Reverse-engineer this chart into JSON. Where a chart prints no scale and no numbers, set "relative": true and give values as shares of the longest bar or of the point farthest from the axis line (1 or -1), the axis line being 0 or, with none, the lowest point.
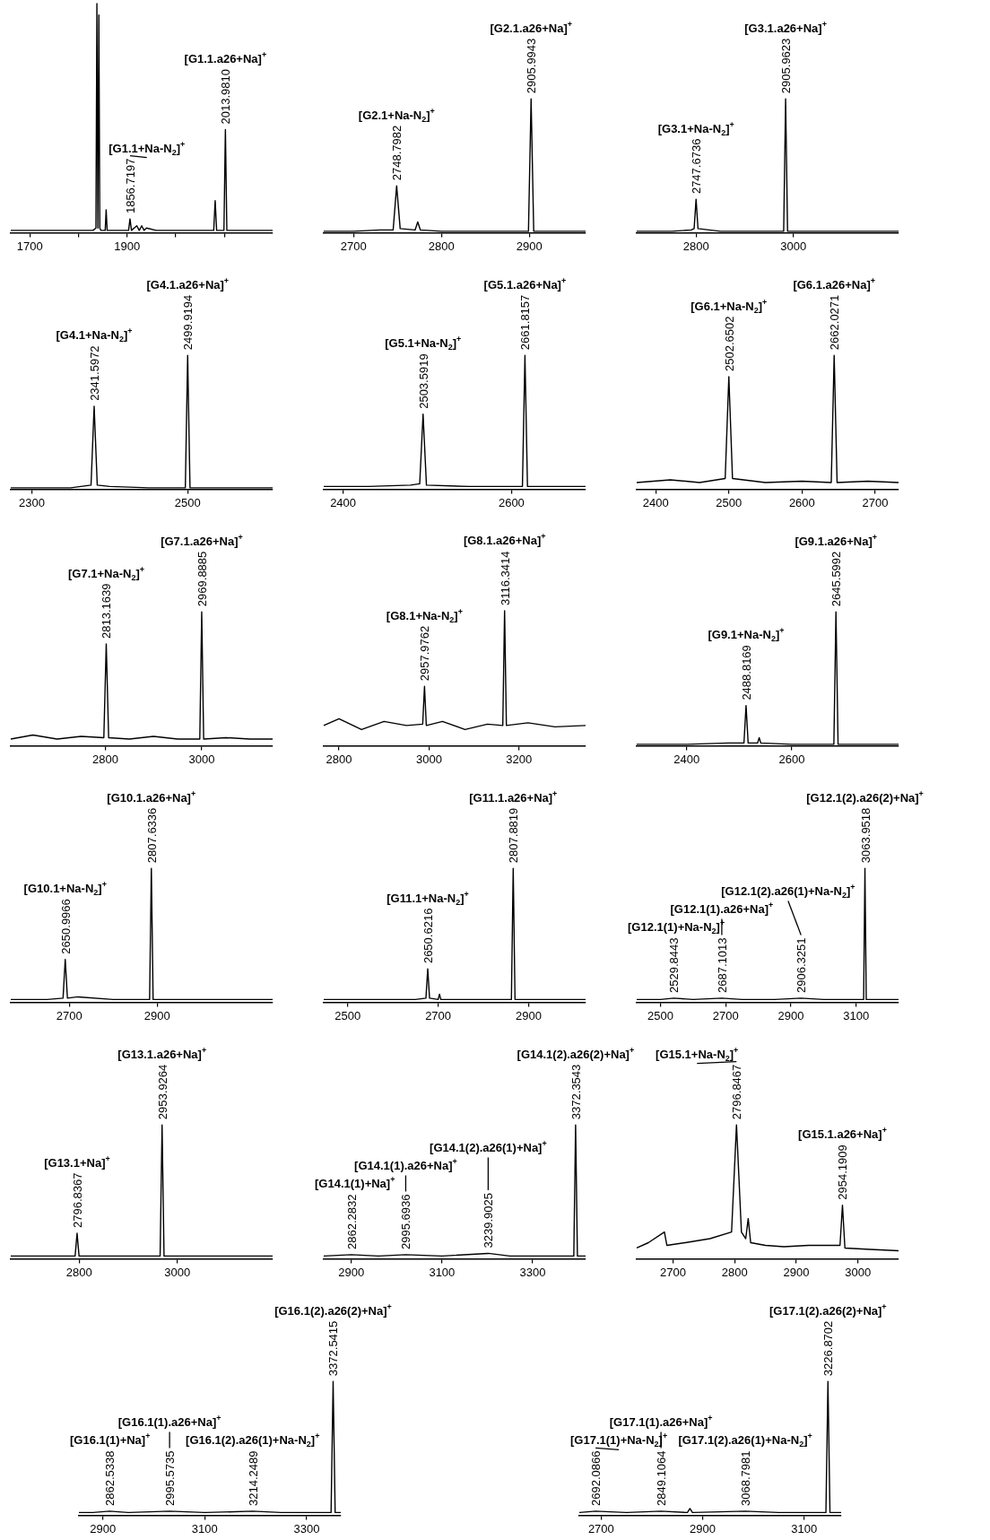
{
  "chart_data": [
    {
      "type": "line",
      "relative": true,
      "color": "#000000",
      "xlim": [
        1661,
        2199
      ],
      "xticks": [
        1700,
        {
          "value": 1800,
          "label": null
        },
        1900,
        {
          "value": 2000,
          "label": null
        },
        {
          "value": 2100,
          "label": null
        }
      ],
      "x": [
        1661,
        1700,
        1760,
        1800,
        1830,
        1836,
        1838,
        1840,
        1842,
        1844,
        1846,
        1850,
        1855,
        1857,
        1859,
        1880,
        1903,
        1906,
        1909,
        1920,
        1925,
        1930,
        1935,
        1940,
        1960,
        2060,
        2078,
        2081,
        2084,
        2099,
        2102,
        2105,
        2150,
        2199
      ],
      "values": [
        0.01,
        0.01,
        0.01,
        0.01,
        0.01,
        0.02,
        1,
        0.02,
        0.95,
        0.02,
        0.01,
        0.01,
        0.01,
        0.1,
        0.01,
        0.01,
        0.01,
        0.06,
        0.01,
        0.03,
        0.01,
        0.03,
        0.01,
        0.02,
        0.01,
        0.01,
        0.01,
        0.14,
        0.01,
        0.01,
        0.45,
        0.01,
        0.01,
        0.01
      ],
      "annotations": [
        "[G1.1+Na-N$_{2}$]$^{+}$",
        {
          "text": "1856.7197",
          "x": 1906,
          "y": 0.06
        },
        "[G1.1.a26+Na]$^{+}$",
        {
          "text": "2013.9810",
          "x": 2102,
          "y": 0.45
        }
      ]
    },
    {
      "type": "line",
      "relative": true,
      "color": "#000000",
      "xlim": [
        2666,
        2964
      ],
      "xticks": [
        2700,
        2800,
        2900
      ],
      "x": [
        2666,
        2700,
        2730,
        2745,
        2749,
        2753,
        2770,
        2773,
        2776,
        2800,
        2850,
        2899,
        2902,
        2905,
        2930,
        2964
      ],
      "values": [
        0.01,
        0.01,
        0.02,
        0.02,
        0.35,
        0.03,
        0.02,
        0.08,
        0.02,
        0.01,
        0.01,
        0.01,
        1,
        0.01,
        0.01,
        0.01
      ],
      "annotations": [
        "[G2.1+Na-N$_{2}$]$^{+}$",
        {
          "text": "2748.7982",
          "x": 2749,
          "y": 0.35
        },
        "[G2.1.a26+Na]$^{+}$",
        {
          "text": "2905.9943",
          "x": 2902,
          "y": 1
        }
      ]
    },
    {
      "type": "line",
      "relative": true,
      "color": "#000000",
      "xlim": [
        2678,
        3216
      ],
      "xticks": [
        2800,
        3000
      ],
      "x": [
        2678,
        2750,
        2790,
        2796,
        2800,
        2804,
        2850,
        2900,
        2980,
        2984,
        2988,
        3050,
        3216
      ],
      "values": [
        0.01,
        0.01,
        0.02,
        0.03,
        0.25,
        0.03,
        0.01,
        0.01,
        0.01,
        1,
        0.01,
        0.01,
        0.01
      ],
      "annotations": [
        "[G3.1+Na-N$_{2}$]$^{+}$",
        {
          "text": "2747.6736",
          "x": 2800,
          "y": 0.25
        },
        "[G3.1.a26+Na]$^{+}$",
        {
          "text": "2905.9623",
          "x": 2984,
          "y": 1
        }
      ]
    },
    {
      "type": "line",
      "relative": true,
      "color": "#000000",
      "xlim": [
        2273,
        2609
      ],
      "xticks": [
        2300,
        2500
      ],
      "x": [
        2273,
        2300,
        2350,
        2376,
        2380,
        2384,
        2400,
        2450,
        2497,
        2500,
        2503,
        2550,
        2609
      ],
      "values": [
        0.01,
        0.01,
        0.01,
        0.03,
        0.62,
        0.03,
        0.02,
        0.01,
        0.01,
        1,
        0.01,
        0.01,
        0.01
      ],
      "annotations": [
        "[G4.1+Na-N$_{2}$]$^{+}$",
        {
          "text": "2341.5972",
          "x": 2380,
          "y": 0.62
        },
        "[G4.1.a26+Na]$^{+}$",
        {
          "text": "2499.9194",
          "x": 2500,
          "y": 1
        }
      ]
    },
    {
      "type": "line",
      "relative": true,
      "color": "#000000",
      "xlim": [
        2377,
        2688
      ],
      "xticks": [
        2400,
        2600
      ],
      "x": [
        2377,
        2430,
        2480,
        2491,
        2495,
        2499,
        2550,
        2613,
        2616,
        2619,
        2650,
        2688
      ],
      "values": [
        0.02,
        0.02,
        0.03,
        0.04,
        0.56,
        0.03,
        0.02,
        0.02,
        1,
        0.02,
        0.02,
        0.02
      ],
      "annotations": [
        "[G5.1+Na-N$_{2}$]$^{+}$",
        {
          "text": "2503.5919",
          "x": 2495,
          "y": 0.56
        },
        "[G5.1.a26+Na]$^{+}$",
        {
          "text": "2661.8157",
          "x": 2616,
          "y": 1
        }
      ]
    },
    {
      "type": "line",
      "relative": true,
      "color": "#000000",
      "xlim": [
        2374,
        2732
      ],
      "xticks": [
        2400,
        2500,
        2600,
        2700
      ],
      "x": [
        2374,
        2420,
        2460,
        2495,
        2500,
        2505,
        2550,
        2600,
        2640,
        2644,
        2648,
        2690,
        2732
      ],
      "values": [
        0.05,
        0.07,
        0.05,
        0.08,
        0.84,
        0.08,
        0.05,
        0.06,
        0.05,
        1,
        0.05,
        0.06,
        0.05
      ],
      "annotations": [
        "[G6.1+Na-N$_{2}$]$^{+}$",
        {
          "text": "2502.6502",
          "x": 2500,
          "y": 0.84
        },
        "[G6.1.a26+Na]$^{+}$",
        {
          "text": "2662.0271",
          "x": 2644,
          "y": 1
        }
      ]
    },
    {
      "type": "line",
      "relative": true,
      "color": "#000000",
      "xlim": [
        2604,
        3147
      ],
      "xticks": [
        2800,
        3000
      ],
      "x": [
        2604,
        2650,
        2700,
        2750,
        2797,
        2802,
        2807,
        2850,
        2900,
        2950,
        2996,
        3000,
        3004,
        3050,
        3100,
        3147
      ],
      "values": [
        0.05,
        0.08,
        0.05,
        0.07,
        0.06,
        0.76,
        0.06,
        0.05,
        0.07,
        0.05,
        0.05,
        1,
        0.05,
        0.06,
        0.05,
        0.05
      ],
      "annotations": [
        "[G7.1+Na-N$_{2}$]$^{+}$",
        {
          "text": "2813.1639",
          "x": 2802,
          "y": 0.76
        },
        "[G7.1.a26+Na]$^{+}$",
        {
          "text": "2969.8885",
          "x": 3000,
          "y": 1
        }
      ]
    },
    {
      "type": "line",
      "relative": true,
      "color": "#000000",
      "xlim": [
        2766,
        3348
      ],
      "xticks": [
        2800,
        3000,
        3200
      ],
      "x": [
        2766,
        2800,
        2850,
        2900,
        2950,
        2986,
        2990,
        2994,
        3030,
        3080,
        3130,
        3164,
        3168,
        3172,
        3220,
        3280,
        3348
      ],
      "values": [
        0.15,
        0.2,
        0.12,
        0.18,
        0.15,
        0.16,
        0.44,
        0.15,
        0.18,
        0.12,
        0.16,
        0.15,
        1,
        0.15,
        0.17,
        0.14,
        0.15
      ],
      "annotations": [
        "[G8.1+Na-N$_{2}$]$^{+}$",
        {
          "text": "2957.9762",
          "x": 2990,
          "y": 0.44
        },
        "[G8.1.a26+Na]$^{+}$",
        {
          "text": "3116.3414",
          "x": 3168,
          "y": 1
        }
      ]
    },
    {
      "type": "line",
      "relative": true,
      "color": "#000000",
      "xlim": [
        2305,
        2803
      ],
      "xticks": [
        2400,
        2600
      ],
      "x": [
        2305,
        2400,
        2480,
        2509,
        2513,
        2517,
        2535,
        2538,
        2541,
        2600,
        2680,
        2684,
        2688,
        2750,
        2803
      ],
      "values": [
        0.01,
        0.01,
        0.02,
        0.02,
        0.3,
        0.02,
        0.02,
        0.06,
        0.02,
        0.01,
        0.01,
        1,
        0.01,
        0.01,
        0.01
      ],
      "annotations": [
        "[G9.1+Na-N$_{2}$]$^{+}$",
        {
          "text": "2488.8169",
          "x": 2513,
          "y": 0.3
        },
        "[G9.1.a26+Na]$^{+}$",
        {
          "text": "2645.5992",
          "x": 2684,
          "y": 1
        }
      ]
    },
    {
      "type": "line",
      "relative": true,
      "color": "#000000",
      "xlim": [
        2567,
        3163
      ],
      "xticks": [
        2700,
        2900
      ],
      "x": [
        2567,
        2650,
        2686,
        2691,
        2696,
        2720,
        2800,
        2883,
        2887,
        2891,
        2950,
        3163
      ],
      "values": [
        0.02,
        0.02,
        0.03,
        0.32,
        0.03,
        0.04,
        0.02,
        0.02,
        1,
        0.02,
        0.02,
        0.02
      ],
      "annotations": [
        "[G10.1+Na-N$_{2}$]$^{+}$",
        {
          "text": "2650.9966",
          "x": 2691,
          "y": 0.32
        },
        "[G10.1.a26+Na]$^{+}$",
        {
          "text": "2807.6336",
          "x": 2887,
          "y": 1
        }
      ]
    },
    {
      "type": "line",
      "relative": true,
      "color": "#000000",
      "xlim": [
        2447,
        3026
      ],
      "xticks": [
        2500,
        2700,
        2900
      ],
      "x": [
        2447,
        2550,
        2650,
        2673,
        2677,
        2681,
        2700,
        2703,
        2706,
        2800,
        2862,
        2866,
        2870,
        2950,
        3026
      ],
      "values": [
        0.02,
        0.02,
        0.02,
        0.03,
        0.25,
        0.03,
        0.02,
        0.06,
        0.02,
        0.02,
        0.02,
        1,
        0.02,
        0.02,
        0.02
      ],
      "annotations": [
        "[G11.1+Na-N$_{2}$]$^{+}$",
        {
          "text": "2650.6216",
          "x": 2677,
          "y": 0.25
        },
        "[G11.1.a26+Na]$^{+}$",
        {
          "text": "2807.8819",
          "x": 2866,
          "y": 1
        }
      ]
    },
    {
      "type": "line",
      "relative": true,
      "color": "#000000",
      "xlim": [
        2427,
        3230
      ],
      "xticks": [
        2500,
        2700,
        2900,
        3100
      ],
      "x": [
        2427,
        2500,
        2541,
        2600,
        2688,
        2750,
        2850,
        2931,
        3000,
        3123,
        3127,
        3131,
        3180,
        3230
      ],
      "values": [
        0.02,
        0.02,
        0.03,
        0.02,
        0.03,
        0.02,
        0.02,
        0.03,
        0.02,
        0.02,
        1,
        0.02,
        0.02,
        0.02
      ],
      "annotations": [
        "[G12.1(1)+Na-N$_{2}$]$^{+}$",
        {
          "text": "2529.8443",
          "x": 2541,
          "y": 0.03
        },
        "[G12.1(1).a26+Na]$^{+}$",
        {
          "text": "2687.1013",
          "x": 2688,
          "y": 0.03
        },
        "[G12.1(2).a26(1)+Na-N$_{2}$]$^{+}$",
        {
          "text": "2906.3251",
          "x": 2931,
          "y": 0.03
        },
        "[G12.1(2).a26(2)+Na]$^{+}$",
        {
          "text": "3063.9518",
          "x": 3127,
          "y": 1
        }
      ]
    },
    {
      "type": "line",
      "relative": true,
      "color": "#000000",
      "xlim": [
        2661,
        3194
      ],
      "xticks": [
        2800,
        3000
      ],
      "x": [
        2661,
        2750,
        2792,
        2796,
        2800,
        2850,
        2900,
        2965,
        2969,
        2973,
        3050,
        3194
      ],
      "values": [
        0.02,
        0.02,
        0.02,
        0.19,
        0.02,
        0.02,
        0.02,
        0.02,
        1,
        0.02,
        0.02,
        0.02
      ],
      "annotations": [
        "[G13.1+Na]$^{+}$",
        {
          "text": "2796.8367",
          "x": 2796,
          "y": 0.19
        },
        "[G13.1.a26+Na]$^{+}$",
        {
          "text": "2953.9264",
          "x": 2969,
          "y": 1
        }
      ]
    },
    {
      "type": "line",
      "relative": true,
      "color": "#000000",
      "xlim": [
        2839,
        3417
      ],
      "xticks": [
        2900,
        3100,
        3300
      ],
      "x": [
        2839,
        2900,
        2960,
        3020,
        3100,
        3202,
        3250,
        3391,
        3395,
        3399,
        3417
      ],
      "values": [
        0.02,
        0.03,
        0.02,
        0.03,
        0.02,
        0.04,
        0.02,
        0.02,
        1,
        0.02,
        0.02
      ],
      "annotations": [
        "[G14.1(1)+Na]$^{+}$",
        {
          "text": "2862.2832",
          "x": 2900,
          "y": 0.03
        },
        "[G14.1(1).a26+Na]$^{+}$",
        {
          "text": "2995.6936",
          "x": 3020,
          "y": 0.03
        },
        "[G14.1(2).a26(1)+Na]$^{+}$",
        {
          "text": "3239.9025",
          "x": 3202,
          "y": 0.04
        },
        "[G14.1(2).a26(2)+Na]$^{+}$",
        {
          "text": "3372.3543",
          "x": 3395,
          "y": 1
        }
      ]
    },
    {
      "type": "line",
      "relative": true,
      "color": "#000000",
      "xlim": [
        2641,
        3066
      ],
      "xticks": [
        2700,
        2800,
        2900,
        3000
      ],
      "x": [
        2641,
        2660,
        2686,
        2690,
        2720,
        2760,
        2795,
        2803,
        2811,
        2818,
        2822,
        2826,
        2850,
        2880,
        2920,
        2971,
        2975,
        2979,
        3020,
        3066
      ],
      "values": [
        0.08,
        0.12,
        0.2,
        0.1,
        0.12,
        0.15,
        0.2,
        1,
        0.2,
        0.15,
        0.3,
        0.12,
        0.1,
        0.09,
        0.1,
        0.1,
        0.4,
        0.08,
        0.07,
        0.06
      ],
      "annotations": [
        "[G15.1+Na-N$_{2}$]$^{+}$",
        {
          "text": "2796.8467",
          "x": 2803,
          "y": 1
        },
        "[G15.1.a26+Na]$^{+}$",
        {
          "text": "2954.1909",
          "x": 2975,
          "y": 0.4
        }
      ]
    },
    {
      "type": "line",
      "relative": true,
      "color": "#000000",
      "xlim": [
        2853,
        3367
      ],
      "xticks": [
        2900,
        3100,
        3300
      ],
      "x": [
        2853,
        2880,
        2913,
        2950,
        3031,
        3100,
        3194,
        3250,
        3300,
        3348,
        3352,
        3356,
        3367
      ],
      "values": [
        0.02,
        0.02,
        0.03,
        0.02,
        0.03,
        0.02,
        0.03,
        0.02,
        0.02,
        0.02,
        1,
        0.02,
        0.02
      ],
      "annotations": [
        "[G16.1(1)+Na]$^{+}$",
        {
          "text": "2862.5338",
          "x": 2913,
          "y": 0.03
        },
        "[G16.1(1).a26+Na]$^{+}$",
        {
          "text": "2995.5735",
          "x": 3031,
          "y": 0.03
        },
        "[G16.1(2).a26(1)+Na-N$_{2}$]$^{+}$",
        {
          "text": "3214.2489",
          "x": 3194,
          "y": 0.03
        },
        "[G16.1(2).a26(2)+Na]$^{+}$",
        {
          "text": "3372.5415",
          "x": 3352,
          "y": 1
        }
      ]
    },
    {
      "type": "line",
      "relative": true,
      "color": "#000000",
      "xlim": [
        2657,
        3173
      ],
      "xticks": [
        2700,
        2900,
        3100
      ],
      "x": [
        2657,
        2689,
        2750,
        2818,
        2870,
        2875,
        2880,
        2984,
        3050,
        3143,
        3147,
        3151,
        3173
      ],
      "values": [
        0.02,
        0.03,
        0.02,
        0.03,
        0.02,
        0.05,
        0.02,
        0.03,
        0.02,
        0.02,
        1,
        0.02,
        0.02
      ],
      "annotations": [
        "[G17.1(1)+Na-N$_{2}$]$^{+}$",
        {
          "text": "2692.0866",
          "x": 2689,
          "y": 0.03
        },
        "[G17.1(1).a26+Na]$^{+}$",
        {
          "text": "2849.1064",
          "x": 2818,
          "y": 0.03
        },
        "[G17.1(2).a26(1)+Na-N$_{2}$]$^{+}$",
        {
          "text": "3068.7981",
          "x": 2984,
          "y": 0.03
        },
        "[G17.1(2).a26(2)+Na]$^{+}$",
        {
          "text": "3226.8702",
          "x": 3147,
          "y": 1
        }
      ]
    }
  ]
}
